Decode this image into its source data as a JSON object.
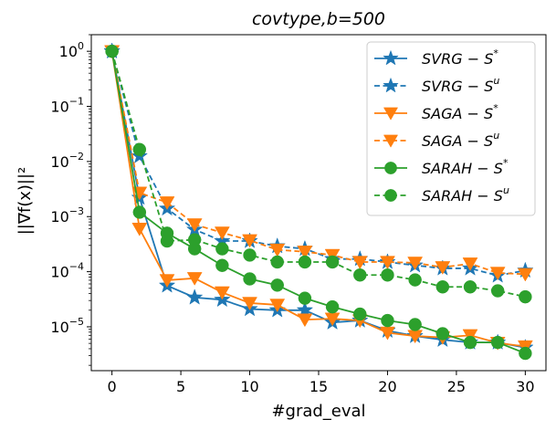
{
  "chart_data": {
    "type": "line",
    "title_main": "covtype,b=500",
    "title_b": "b",
    "title_val": "500",
    "xlabel": "#grad_eval",
    "ylabel": "||∇f(x)||²",
    "yscale": "log",
    "xlim": [
      -1.5,
      31.5
    ],
    "ylim": [
      1.6e-06,
      2.0
    ],
    "xticks": [
      0,
      5,
      10,
      15,
      20,
      25,
      30
    ],
    "xtick_labels": [
      "0",
      "5",
      "10",
      "15",
      "20",
      "25",
      "30"
    ],
    "ytick_exponents": [
      0,
      -1,
      -2,
      -3,
      -4,
      -5
    ],
    "ytick_base": "10",
    "x": [
      0,
      2,
      4,
      6,
      8,
      10,
      12,
      14,
      16,
      18,
      20,
      22,
      24,
      26,
      28,
      30
    ],
    "legend_position": "top-right",
    "series": [
      {
        "name": "SVRG − S*",
        "base": "SVRG",
        "sup": "*",
        "color": "#1f77b4",
        "marker": "star",
        "dash": "solid",
        "values": [
          1.0,
          0.0022,
          5.6e-05,
          3.4e-05,
          3.1e-05,
          2.1e-05,
          2e-05,
          2e-05,
          1.2e-05,
          1.3e-05,
          8.5e-06,
          6.8e-06,
          5.8e-06,
          5.2e-06,
          5.2e-06,
          4.2e-06
        ]
      },
      {
        "name": "SVRG − Sᵘ",
        "base": "SVRG",
        "sup": "u",
        "color": "#1f77b4",
        "marker": "star",
        "dash": "dashed",
        "values": [
          1.0,
          0.0125,
          0.0014,
          0.00058,
          0.00036,
          0.00036,
          0.00029,
          0.00026,
          0.00017,
          0.00017,
          0.00015,
          0.00013,
          0.000115,
          0.000115,
          8.5e-05,
          0.000105
        ]
      },
      {
        "name": "SAGA − S*",
        "base": "SAGA",
        "sup": "*",
        "color": "#ff7f0e",
        "marker": "triangle-down",
        "dash": "solid",
        "values": [
          1.0,
          0.0006,
          7e-05,
          7.6e-05,
          4.2e-05,
          2.7e-05,
          2.5e-05,
          1.35e-05,
          1.4e-05,
          1.3e-05,
          7.8e-06,
          6.8e-06,
          6.4e-06,
          7e-06,
          5.1e-06,
          4.4e-06
        ]
      },
      {
        "name": "SAGA − Sᵘ",
        "base": "SAGA",
        "sup": "u",
        "color": "#ff7f0e",
        "marker": "triangle-down",
        "dash": "dashed",
        "values": [
          1.0,
          0.0027,
          0.0018,
          0.00072,
          0.00051,
          0.00037,
          0.00025,
          0.00023,
          0.0002,
          0.00015,
          0.00015,
          0.000145,
          0.00012,
          0.00014,
          9.5e-05,
          9e-05
        ]
      },
      {
        "name": "SARAH − S*",
        "base": "SARAH",
        "sup": "*",
        "color": "#2ca02c",
        "marker": "circle",
        "dash": "solid",
        "values": [
          1.0,
          0.0012,
          0.0005,
          0.00026,
          0.00013,
          7.4e-05,
          5.7e-05,
          3.3e-05,
          2.3e-05,
          1.7e-05,
          1.3e-05,
          1.1e-05,
          7.5e-06,
          5.2e-06,
          5.2e-06,
          3.3e-06
        ]
      },
      {
        "name": "SARAH − Sᵘ",
        "base": "SARAH",
        "sup": "u",
        "color": "#2ca02c",
        "marker": "circle",
        "dash": "dashed",
        "values": [
          1.0,
          0.0165,
          0.00036,
          0.00038,
          0.00026,
          0.0002,
          0.00015,
          0.00015,
          0.00015,
          8.7e-05,
          8.7e-05,
          7.1e-05,
          5.3e-05,
          5.3e-05,
          4.5e-05,
          3.5e-05
        ]
      }
    ]
  }
}
